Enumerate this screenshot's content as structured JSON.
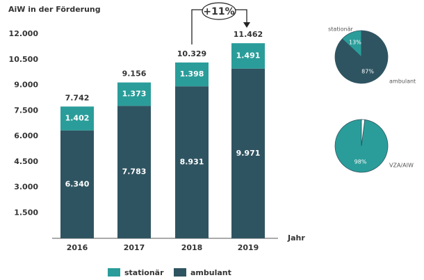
{
  "chart_data": [
    {
      "type": "bar",
      "title": "AiW in der Förderung",
      "categories": [
        "2016",
        "2017",
        "2018",
        "2019"
      ],
      "series": [
        {
          "name": "ambulant",
          "color": "#2f5461",
          "values": [
            6340,
            7783,
            8931,
            9971
          ],
          "value_labels": [
            "6.340",
            "7.783",
            "8.931",
            "9.971"
          ]
        },
        {
          "name": "stationär",
          "color": "#2a9d9a",
          "values": [
            1402,
            1373,
            1398,
            1491
          ],
          "value_labels": [
            "1.402",
            "1.373",
            "1.398",
            "1.491"
          ]
        }
      ],
      "totals": [
        7742,
        9156,
        10329,
        11462
      ],
      "total_labels": [
        "7.742",
        "9.156",
        "10.329",
        "11.462"
      ],
      "x_label": "Jahr",
      "annotation": "+11%",
      "ylim": [
        0,
        12000
      ],
      "yticks": [
        {
          "value": 1500,
          "label": "1.500"
        },
        {
          "value": 3000,
          "label": "3.000"
        },
        {
          "value": 4500,
          "label": "4.500"
        },
        {
          "value": 6000,
          "label": "6.000"
        },
        {
          "value": 7500,
          "label": "7.500"
        },
        {
          "value": 9000,
          "label": "9.000"
        },
        {
          "value": 10500,
          "label": "10.500"
        },
        {
          "value": 12000,
          "label": "12.000"
        }
      ],
      "legend": [
        "stationär",
        "ambulant"
      ],
      "legend_position": "bottom"
    },
    {
      "type": "pie",
      "categories": [
        "stationär",
        "ambulant"
      ],
      "values": [
        13,
        87
      ],
      "value_labels": [
        "13%",
        "87%"
      ],
      "colors": [
        "#2a9d9a",
        "#2f5461"
      ]
    },
    {
      "type": "pie",
      "categories": [
        "VZA/AIW",
        null
      ],
      "values": [
        98,
        2
      ],
      "value_labels": [
        "98%",
        null
      ],
      "colors": [
        "#2a9d9a",
        "#ffffff"
      ]
    }
  ]
}
